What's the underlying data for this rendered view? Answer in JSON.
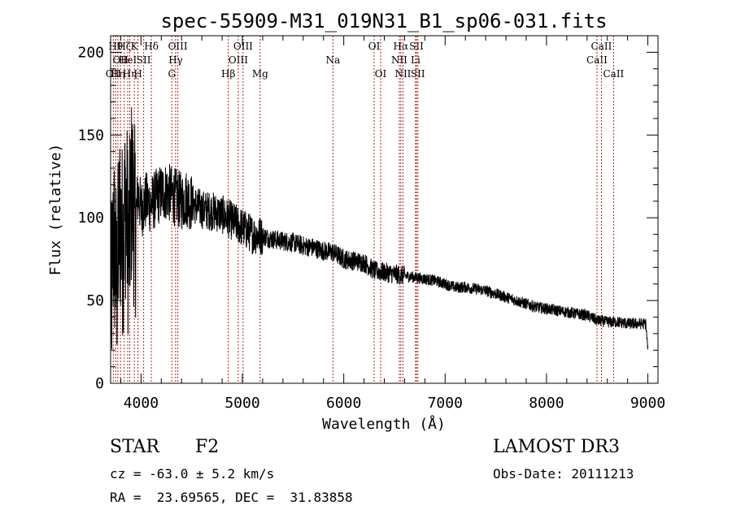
{
  "chart_data": {
    "type": "line",
    "title": "spec-55909-M31_019N31_B1_sp06-031.fits",
    "xlabel": "Wavelength (Å)",
    "ylabel": "Flux (relative)",
    "xlim": [
      3700,
      9100
    ],
    "ylim": [
      0,
      210
    ],
    "xticks": [
      4000,
      5000,
      6000,
      7000,
      8000,
      9000
    ],
    "yticks": [
      0,
      50,
      100,
      150,
      200
    ],
    "x_minor_step": 200,
    "y_minor_step": 10,
    "series": [
      {
        "name": "spectrum",
        "color": "#000000",
        "x": [
          3700,
          3730,
          3760,
          3790,
          3820,
          3850,
          3880,
          3910,
          3940,
          3970,
          4000,
          4050,
          4100,
          4150,
          4200,
          4250,
          4300,
          4350,
          4400,
          4450,
          4500,
          4600,
          4700,
          4800,
          4900,
          5000,
          5100,
          5200,
          5300,
          5400,
          5500,
          5600,
          5700,
          5800,
          5900,
          6000,
          6100,
          6200,
          6300,
          6400,
          6500,
          6600,
          6700,
          6800,
          6900,
          7000,
          7100,
          7200,
          7300,
          7400,
          7500,
          7600,
          7700,
          7800,
          7900,
          8000,
          8100,
          8200,
          8300,
          8400,
          8500,
          8600,
          8700,
          8800,
          8900,
          8980,
          9000
        ],
        "y": [
          40,
          90,
          60,
          100,
          85,
          110,
          80,
          120,
          95,
          115,
          105,
          110,
          108,
          112,
          115,
          116,
          114,
          112,
          110,
          112,
          109,
          105,
          104,
          102,
          98,
          94,
          90,
          89,
          87,
          86,
          85,
          83,
          82,
          80,
          79,
          75,
          74,
          73,
          68,
          67,
          66,
          65,
          64,
          63,
          62,
          60,
          58,
          58,
          57,
          56,
          54,
          52,
          50,
          48,
          46,
          45,
          44,
          43,
          42,
          41,
          38,
          37,
          37,
          36,
          36,
          36,
          20
        ]
      }
    ],
    "lines": [
      {
        "wavelength": 3727,
        "labels": [
          "OII"
        ],
        "row": 3
      },
      {
        "wavelength": 3750,
        "labels": [
          "Hθ"
        ],
        "row": 1
      },
      {
        "wavelength": 3771,
        "labels": [
          "Hη"
        ],
        "row": 3
      },
      {
        "wavelength": 3798,
        "labels": [
          "OII"
        ],
        "row": 2
      },
      {
        "wavelength": 3835,
        "labels": [
          "Hζ"
        ],
        "row": 1
      },
      {
        "wavelength": 3869,
        "labels": [
          "HeI"
        ],
        "row": 2
      },
      {
        "wavelength": 3889,
        "labels": [
          "Hη"
        ],
        "row": 3
      },
      {
        "wavelength": 3934,
        "labels": [
          "K"
        ],
        "row": 1
      },
      {
        "wavelength": 3970,
        "labels": [
          "H"
        ],
        "row": 3
      },
      {
        "wavelength": 4026,
        "labels": [
          "SII"
        ],
        "row": 2
      },
      {
        "wavelength": 4102,
        "labels": [
          "Hδ"
        ],
        "row": 1
      },
      {
        "wavelength": 4304,
        "labels": [
          "G"
        ],
        "row": 3
      },
      {
        "wavelength": 4341,
        "labels": [
          "Hγ"
        ],
        "row": 2
      },
      {
        "wavelength": 4363,
        "labels": [
          "OIII"
        ],
        "row": 1
      },
      {
        "wavelength": 4861,
        "labels": [
          "Hβ"
        ],
        "row": 3
      },
      {
        "wavelength": 4959,
        "labels": [
          "OIII"
        ],
        "row": 2
      },
      {
        "wavelength": 5007,
        "labels": [
          "OIII"
        ],
        "row": 1
      },
      {
        "wavelength": 5175,
        "labels": [
          "Mg"
        ],
        "row": 3
      },
      {
        "wavelength": 5893,
        "labels": [
          "Na"
        ],
        "row": 2
      },
      {
        "wavelength": 6300,
        "labels": [
          "OI"
        ],
        "row": 1
      },
      {
        "wavelength": 6364,
        "labels": [
          "OI"
        ],
        "row": 3
      },
      {
        "wavelength": 6548,
        "labels": [
          "NII"
        ],
        "row": 2
      },
      {
        "wavelength": 6563,
        "labels": [
          "Hα"
        ],
        "row": 1
      },
      {
        "wavelength": 6584,
        "labels": [
          "NII"
        ],
        "row": 3
      },
      {
        "wavelength": 6708,
        "labels": [
          "Li"
        ],
        "row": 2
      },
      {
        "wavelength": 6717,
        "labels": [
          "SII"
        ],
        "row": 1
      },
      {
        "wavelength": 6731,
        "labels": [
          "SII"
        ],
        "row": 3
      },
      {
        "wavelength": 8498,
        "labels": [
          "CaII"
        ],
        "row": 2
      },
      {
        "wavelength": 8542,
        "labels": [
          "CaII"
        ],
        "row": 1
      },
      {
        "wavelength": 8662,
        "labels": [
          "CaII"
        ],
        "row": 3
      }
    ]
  },
  "footer": {
    "class_label": "STAR",
    "subclass": "F2",
    "redshift_text": "cz = -63.0 ± 5.2 km/s",
    "coords_text": "RA =  23.69565, DEC =  31.83858",
    "survey": "LAMOST DR3",
    "obs_date_text": "Obs-Date: 20111213"
  }
}
